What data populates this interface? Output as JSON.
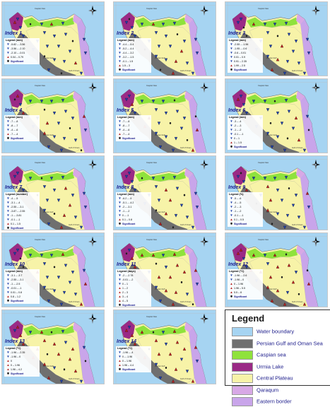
{
  "colors": {
    "water": "#a6d4f2",
    "gulf": "#6f6f6f",
    "caspian": "#8fe23c",
    "urmia": "#9a2a86",
    "central": "#f7f3a8",
    "qaraqum": "#d8a8e6",
    "eastern": "#c9a5ea",
    "marker_decrease": "#1f3fa8",
    "marker_increase": "#b51f1f",
    "marker_neutral": "#222222"
  },
  "seas": {
    "caspian": "Caspian Sea",
    "persian_gulf": "Persian Gulf",
    "oman": "Gulf of Oman"
  },
  "significant_label": "Significant",
  "panels": [
    {
      "title": "Index 1",
      "legend_title": "Legend (mm)",
      "items": [
        "-5.82 – -3.56",
        "-3.56 – -2.10",
        "-2.10 – -0.01",
        "0.04 – 0.79"
      ],
      "trend": "down"
    },
    {
      "title": "Index 2",
      "legend_title": "Legend (mm)",
      "items": [
        "-4.4 – -5.4",
        "-5.2 – -4.4",
        "-4.4 – -3.2",
        "-3.2 – -1.5",
        "-0.1 – 1.5",
        "1.5 – 3"
      ],
      "trend": "down"
    },
    {
      "title": "Index 3",
      "legend_title": "Legend (mm)",
      "items": [
        "-2.55 – -1.96",
        "-1.95 – -0.6",
        "-0.6 – 0.01",
        "0.01 – 0.9",
        "0.91 – 2.35",
        "1.99 – 2.5"
      ],
      "trend": "down"
    },
    {
      "title": "Index 4",
      "legend_title": "Legend (mm)",
      "items": [
        "-7 – -8",
        "-8 – -7",
        "-4 – -6",
        "-7 – -4"
      ],
      "trend": "down"
    },
    {
      "title": "Index 5",
      "legend_title": "Legend (mm)",
      "items": [
        "-7 – -8",
        "-8 – -7",
        "-4 – -6",
        "-7 – -4"
      ],
      "trend": "down"
    },
    {
      "title": "Index 6",
      "legend_title": "Legend (mm)",
      "items": [
        "-3 – -4",
        "-2 – -3",
        "-1 – -2",
        "-0.1 – -1",
        "0 – 1",
        "1 – 1.5"
      ],
      "trend": "down"
    },
    {
      "title": "Index 7",
      "legend_title": "Legend (number)",
      "items": [
        "-4 – -5",
        "-3.1 – -4",
        "-2.55 – -3.1",
        "-3.87 – -2.55",
        "-1 – -3.81",
        "-0.1 – -1",
        "0.1 – 1.5"
      ],
      "trend": "down"
    },
    {
      "title": "Index 8",
      "legend_title": "Legend (mm)",
      "items": [
        "-6.2 – -5",
        "-5.1 – -4.2",
        "-2 – -3.1",
        "-1 – -2",
        "0 – -1",
        "0.1 – 0.8"
      ],
      "trend": "down"
    },
    {
      "title": "Index 9",
      "legend_title": "Legend (%)",
      "items": [
        "-5 – -6",
        "-4 – -5",
        "-2 – -3",
        "-1 – -2",
        "-0.1 – -1",
        "0.1 – 0.5"
      ],
      "trend": "down"
    },
    {
      "title": "Index 10",
      "legend_title": "Legend (mm)",
      "items": [
        "-3.1 – -3.7",
        "-2.55 – -3.1",
        "-1 – -2.5",
        "-0.01 – -1",
        "0.01 – 0.8",
        "0.8 – 1.2"
      ],
      "trend": "down"
    },
    {
      "title": "Index 11",
      "legend_title": "Legend (days)",
      "items": [
        "-2 – -2.78",
        "-0.01 – -2",
        "0 – 1",
        "1 – 2",
        "2 – 3",
        "3 – 4",
        "4 – 5"
      ],
      "trend": "up"
    },
    {
      "title": "Index 12",
      "legend_title": "Legend (°C)",
      "items": [
        "-1.96 – -2.6",
        "-1.96 – 0",
        "0 – 1.96",
        "1.96 – 5.5",
        "5.5 – 8"
      ],
      "trend": "up"
    },
    {
      "title": "Index 13",
      "legend_title": "Legend (°C)",
      "items": [
        "-1.96 – -2.35",
        "-1.96 – 0",
        "0",
        "0 – 1.96",
        "1.96 – 4.2"
      ],
      "trend": "up"
    },
    {
      "title": "Index 14",
      "legend_title": "Legend (°C)",
      "items": [
        "-1.96 – -4",
        "0 – -1.96",
        "0 – 1.96",
        "1.96 – 4.4"
      ],
      "trend": "up"
    }
  ],
  "main_legend": {
    "title": "Legend",
    "items": [
      {
        "label": "Water boundary",
        "color": "#a6d4f2"
      },
      {
        "label": "Persian Gulf and Oman Sea",
        "color": "#6f6f6f"
      },
      {
        "label": "Caspian sea",
        "color": "#8fe23c"
      },
      {
        "label": "Urmia Lake",
        "color": "#9a2a86"
      },
      {
        "label": "Central Plateau",
        "color": "#f7f3a8"
      },
      {
        "label": "Qaraqum",
        "color": "#d8a8e6"
      },
      {
        "label": "Eastern border",
        "color": "#c9a5ea"
      }
    ]
  }
}
